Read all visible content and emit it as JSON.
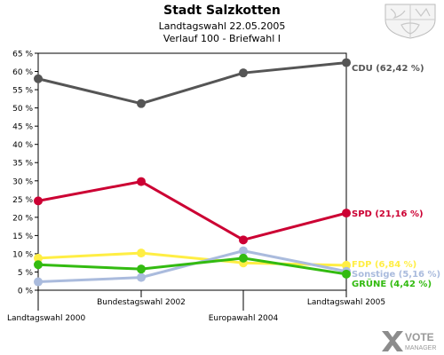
{
  "header": {
    "title": "Stadt Salzkotten",
    "subtitle1": "Landtagswahl 22.05.2005",
    "subtitle2": "Verlauf 100 - Briefwahl I"
  },
  "logo": {
    "icon": "vote-manager-logo",
    "line1": "VOTE",
    "line2": "MANAGER"
  },
  "crest": {
    "icon": "coat-of-arms-icon"
  },
  "chart_data": {
    "type": "line",
    "title": "Stadt Salzkotten",
    "x": [
      "Landtagswahl 2000",
      "Bundestagswahl 2002",
      "Europawahl 2004",
      "Landtagswahl 2005"
    ],
    "ylim": [
      0,
      65
    ],
    "yticks": [
      0,
      5,
      10,
      15,
      20,
      25,
      30,
      35,
      40,
      45,
      50,
      55,
      60,
      65
    ],
    "ytick_labels": [
      "0 %",
      "5 %",
      "10 %",
      "15 %",
      "20 %",
      "25 %",
      "30 %",
      "35 %",
      "40 %",
      "45 %",
      "50 %",
      "55 %",
      "60 %",
      "65 %"
    ],
    "grid": false,
    "series": [
      {
        "name": "CDU",
        "end_label": "CDU (62,42 %)",
        "color": "#555555",
        "values": [
          58.0,
          51.2,
          59.6,
          62.42
        ]
      },
      {
        "name": "SPD",
        "end_label": "SPD (21,16 %)",
        "color": "#cc0033",
        "values": [
          24.5,
          29.8,
          13.8,
          21.16
        ]
      },
      {
        "name": "FDP",
        "end_label": "FDP (6,84 %)",
        "color": "#ffee44",
        "values": [
          8.8,
          10.2,
          7.5,
          6.84
        ]
      },
      {
        "name": "Sonstige",
        "end_label": "Sonstige (5,16 %)",
        "color": "#aabbdd",
        "values": [
          2.3,
          3.5,
          10.8,
          5.16
        ]
      },
      {
        "name": "GRÜNE",
        "end_label": "GRÜNE (4,42 %)",
        "color": "#33bb11",
        "values": [
          7.0,
          5.8,
          8.8,
          4.42
        ]
      }
    ]
  }
}
